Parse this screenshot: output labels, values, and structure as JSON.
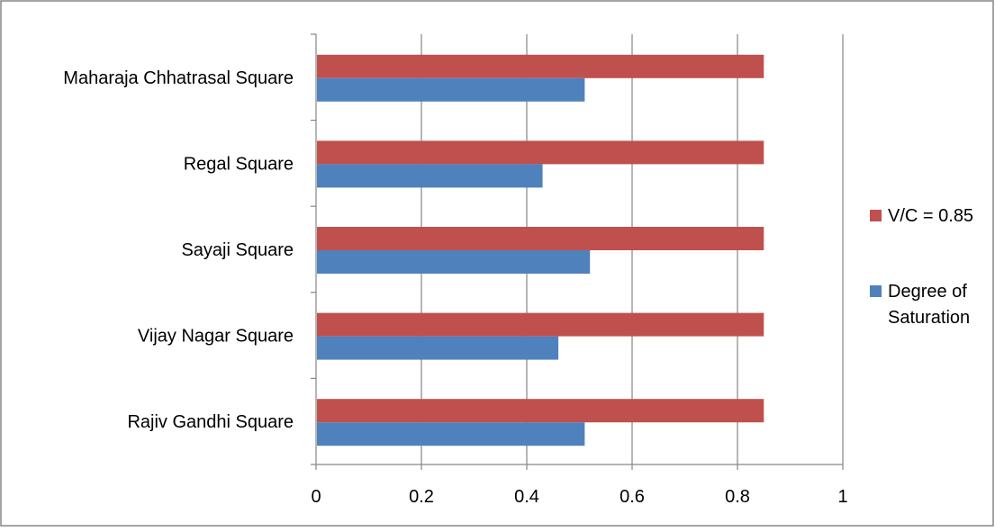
{
  "chart_data": {
    "type": "bar",
    "orientation": "horizontal",
    "categories": [
      "Maharaja Chhatrasal Square",
      "Regal Square",
      "Sayaji Square",
      "Vijay Nagar Square",
      "Rajiv Gandhi Square"
    ],
    "series": [
      {
        "name": "V/C = 0.85",
        "color": "#c0504d",
        "values": [
          0.85,
          0.85,
          0.85,
          0.85,
          0.85
        ]
      },
      {
        "name": "Degree of Saturation",
        "color": "#4f81bd",
        "values": [
          0.51,
          0.43,
          0.52,
          0.46,
          0.51
        ]
      }
    ],
    "xlim": [
      0,
      1
    ],
    "xticks": [
      "0",
      "0.2",
      "0.4",
      "0.6",
      "0.8",
      "1"
    ],
    "grid": "vertical",
    "legend": {
      "position": "right",
      "entries": [
        {
          "label_lines": [
            "V/C = 0.85"
          ],
          "color": "#c0504d"
        },
        {
          "label_lines": [
            "Degree of",
            "Saturation"
          ],
          "color": "#4f81bd"
        }
      ]
    },
    "title": "",
    "xlabel": "",
    "ylabel": ""
  }
}
